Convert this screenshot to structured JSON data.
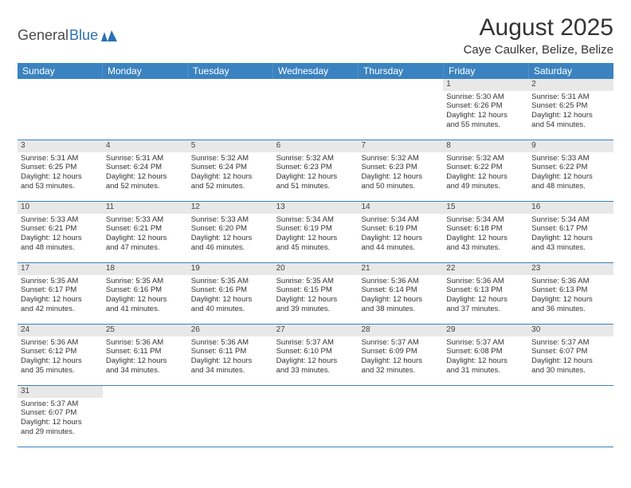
{
  "logo": {
    "general": "General",
    "blue": "Blue"
  },
  "title": "August 2025",
  "location": "Caye Caulker, Belize, Belize",
  "colors": {
    "header_bg": "#3b83c0",
    "header_text": "#ffffff",
    "day_number_bg": "#e8e8e8",
    "border": "#3b83c0",
    "text": "#333333",
    "logo_gray": "#4a4a4a",
    "logo_blue": "#2c6fb5",
    "page_bg": "#ffffff"
  },
  "weekdays": [
    "Sunday",
    "Monday",
    "Tuesday",
    "Wednesday",
    "Thursday",
    "Friday",
    "Saturday"
  ],
  "weeks": [
    [
      null,
      null,
      null,
      null,
      null,
      {
        "n": "1",
        "sr": "Sunrise: 5:30 AM",
        "ss": "Sunset: 6:26 PM",
        "d1": "Daylight: 12 hours",
        "d2": "and 55 minutes."
      },
      {
        "n": "2",
        "sr": "Sunrise: 5:31 AM",
        "ss": "Sunset: 6:25 PM",
        "d1": "Daylight: 12 hours",
        "d2": "and 54 minutes."
      }
    ],
    [
      {
        "n": "3",
        "sr": "Sunrise: 5:31 AM",
        "ss": "Sunset: 6:25 PM",
        "d1": "Daylight: 12 hours",
        "d2": "and 53 minutes."
      },
      {
        "n": "4",
        "sr": "Sunrise: 5:31 AM",
        "ss": "Sunset: 6:24 PM",
        "d1": "Daylight: 12 hours",
        "d2": "and 52 minutes."
      },
      {
        "n": "5",
        "sr": "Sunrise: 5:32 AM",
        "ss": "Sunset: 6:24 PM",
        "d1": "Daylight: 12 hours",
        "d2": "and 52 minutes."
      },
      {
        "n": "6",
        "sr": "Sunrise: 5:32 AM",
        "ss": "Sunset: 6:23 PM",
        "d1": "Daylight: 12 hours",
        "d2": "and 51 minutes."
      },
      {
        "n": "7",
        "sr": "Sunrise: 5:32 AM",
        "ss": "Sunset: 6:23 PM",
        "d1": "Daylight: 12 hours",
        "d2": "and 50 minutes."
      },
      {
        "n": "8",
        "sr": "Sunrise: 5:32 AM",
        "ss": "Sunset: 6:22 PM",
        "d1": "Daylight: 12 hours",
        "d2": "and 49 minutes."
      },
      {
        "n": "9",
        "sr": "Sunrise: 5:33 AM",
        "ss": "Sunset: 6:22 PM",
        "d1": "Daylight: 12 hours",
        "d2": "and 48 minutes."
      }
    ],
    [
      {
        "n": "10",
        "sr": "Sunrise: 5:33 AM",
        "ss": "Sunset: 6:21 PM",
        "d1": "Daylight: 12 hours",
        "d2": "and 48 minutes."
      },
      {
        "n": "11",
        "sr": "Sunrise: 5:33 AM",
        "ss": "Sunset: 6:21 PM",
        "d1": "Daylight: 12 hours",
        "d2": "and 47 minutes."
      },
      {
        "n": "12",
        "sr": "Sunrise: 5:33 AM",
        "ss": "Sunset: 6:20 PM",
        "d1": "Daylight: 12 hours",
        "d2": "and 46 minutes."
      },
      {
        "n": "13",
        "sr": "Sunrise: 5:34 AM",
        "ss": "Sunset: 6:19 PM",
        "d1": "Daylight: 12 hours",
        "d2": "and 45 minutes."
      },
      {
        "n": "14",
        "sr": "Sunrise: 5:34 AM",
        "ss": "Sunset: 6:19 PM",
        "d1": "Daylight: 12 hours",
        "d2": "and 44 minutes."
      },
      {
        "n": "15",
        "sr": "Sunrise: 5:34 AM",
        "ss": "Sunset: 6:18 PM",
        "d1": "Daylight: 12 hours",
        "d2": "and 43 minutes."
      },
      {
        "n": "16",
        "sr": "Sunrise: 5:34 AM",
        "ss": "Sunset: 6:17 PM",
        "d1": "Daylight: 12 hours",
        "d2": "and 43 minutes."
      }
    ],
    [
      {
        "n": "17",
        "sr": "Sunrise: 5:35 AM",
        "ss": "Sunset: 6:17 PM",
        "d1": "Daylight: 12 hours",
        "d2": "and 42 minutes."
      },
      {
        "n": "18",
        "sr": "Sunrise: 5:35 AM",
        "ss": "Sunset: 6:16 PM",
        "d1": "Daylight: 12 hours",
        "d2": "and 41 minutes."
      },
      {
        "n": "19",
        "sr": "Sunrise: 5:35 AM",
        "ss": "Sunset: 6:16 PM",
        "d1": "Daylight: 12 hours",
        "d2": "and 40 minutes."
      },
      {
        "n": "20",
        "sr": "Sunrise: 5:35 AM",
        "ss": "Sunset: 6:15 PM",
        "d1": "Daylight: 12 hours",
        "d2": "and 39 minutes."
      },
      {
        "n": "21",
        "sr": "Sunrise: 5:36 AM",
        "ss": "Sunset: 6:14 PM",
        "d1": "Daylight: 12 hours",
        "d2": "and 38 minutes."
      },
      {
        "n": "22",
        "sr": "Sunrise: 5:36 AM",
        "ss": "Sunset: 6:13 PM",
        "d1": "Daylight: 12 hours",
        "d2": "and 37 minutes."
      },
      {
        "n": "23",
        "sr": "Sunrise: 5:36 AM",
        "ss": "Sunset: 6:13 PM",
        "d1": "Daylight: 12 hours",
        "d2": "and 36 minutes."
      }
    ],
    [
      {
        "n": "24",
        "sr": "Sunrise: 5:36 AM",
        "ss": "Sunset: 6:12 PM",
        "d1": "Daylight: 12 hours",
        "d2": "and 35 minutes."
      },
      {
        "n": "25",
        "sr": "Sunrise: 5:36 AM",
        "ss": "Sunset: 6:11 PM",
        "d1": "Daylight: 12 hours",
        "d2": "and 34 minutes."
      },
      {
        "n": "26",
        "sr": "Sunrise: 5:36 AM",
        "ss": "Sunset: 6:11 PM",
        "d1": "Daylight: 12 hours",
        "d2": "and 34 minutes."
      },
      {
        "n": "27",
        "sr": "Sunrise: 5:37 AM",
        "ss": "Sunset: 6:10 PM",
        "d1": "Daylight: 12 hours",
        "d2": "and 33 minutes."
      },
      {
        "n": "28",
        "sr": "Sunrise: 5:37 AM",
        "ss": "Sunset: 6:09 PM",
        "d1": "Daylight: 12 hours",
        "d2": "and 32 minutes."
      },
      {
        "n": "29",
        "sr": "Sunrise: 5:37 AM",
        "ss": "Sunset: 6:08 PM",
        "d1": "Daylight: 12 hours",
        "d2": "and 31 minutes."
      },
      {
        "n": "30",
        "sr": "Sunrise: 5:37 AM",
        "ss": "Sunset: 6:07 PM",
        "d1": "Daylight: 12 hours",
        "d2": "and 30 minutes."
      }
    ],
    [
      {
        "n": "31",
        "sr": "Sunrise: 5:37 AM",
        "ss": "Sunset: 6:07 PM",
        "d1": "Daylight: 12 hours",
        "d2": "and 29 minutes."
      },
      null,
      null,
      null,
      null,
      null,
      null
    ]
  ]
}
